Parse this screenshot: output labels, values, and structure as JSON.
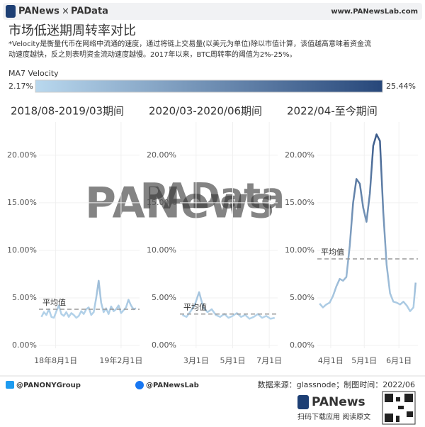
{
  "header": {
    "logo_left": "PANews",
    "logo_sep": "×",
    "logo_right": "PAData",
    "url": "www.PANewsLab.com",
    "title": "市场低迷期周转率对比",
    "subtitle_lines": [
      "*Velocity是衡量代币在网络中流通的速度，通过将链上交易量(以美元为单位)除以市值计算，该值越高意味着资金流",
      "动速度越快，反之则表明资金流动速度越慢。2017年以来，BTC周转率的阈值为2%-25%。"
    ]
  },
  "color_scale": {
    "title": "MA7 Velocity",
    "min": {
      "value": 2.17,
      "label": "2.17%"
    },
    "max": {
      "value": 25.44,
      "label": "25.44%"
    },
    "colors": [
      "#b9d8ee",
      "#27477a"
    ]
  },
  "watermarks": [
    "PANews",
    "PAData"
  ],
  "chart_data": [
    {
      "type": "line",
      "title": "2018/08-2019/03期间",
      "x": [
        "2018-06-22",
        "2018-06-29",
        "2018-07-06",
        "2018-07-13",
        "2018-07-20",
        "2018-07-27",
        "2018-08-03",
        "2018-08-10",
        "2018-08-17",
        "2018-08-24",
        "2018-08-31",
        "2018-09-07",
        "2018-09-14",
        "2018-09-21",
        "2018-09-28",
        "2018-10-05",
        "2018-10-12",
        "2018-10-19",
        "2018-10-26",
        "2018-11-02",
        "2018-11-09",
        "2018-11-16",
        "2018-11-23",
        "2018-11-30",
        "2018-12-07",
        "2018-12-14",
        "2018-12-21",
        "2018-12-28",
        "2019-01-04",
        "2019-01-11",
        "2019-01-18",
        "2019-01-25",
        "2019-02-01",
        "2019-02-08",
        "2019-02-15",
        "2019-02-22",
        "2019-03-01",
        "2019-03-08",
        "2019-03-15"
      ],
      "values": [
        3.0,
        3.5,
        3.2,
        3.8,
        3.0,
        2.9,
        3.6,
        4.2,
        3.3,
        3.1,
        3.5,
        3.0,
        3.4,
        3.2,
        2.9,
        3.1,
        3.6,
        3.3,
        3.8,
        4.0,
        3.2,
        3.5,
        5.0,
        6.8,
        4.5,
        3.5,
        3.9,
        3.3,
        4.1,
        3.6,
        3.8,
        4.2,
        3.4,
        3.7,
        4.0,
        4.8,
        4.2,
        3.8,
        3.9
      ],
      "xlim": [
        "2018-06-15",
        "2019-03-25"
      ],
      "xticks": [
        {
          "value": "2018-08-01",
          "label": "18年8月1日"
        },
        {
          "value": "2019-02-01",
          "label": "19年2月1日"
        }
      ],
      "ylim": [
        -0.3,
        23.5
      ],
      "yticks": [
        {
          "value": 0,
          "label": "0.00%"
        },
        {
          "value": 5,
          "label": "5.00%"
        },
        {
          "value": 10,
          "label": "10.00%"
        },
        {
          "value": 15,
          "label": "15.00%"
        },
        {
          "value": 20,
          "label": "20.00%"
        }
      ],
      "average": {
        "label": "平均值",
        "value": 3.8
      }
    },
    {
      "type": "line",
      "title": "2020/03-2020/06期间",
      "x": [
        "2020-02-07",
        "2020-02-14",
        "2020-02-21",
        "2020-02-28",
        "2020-03-06",
        "2020-03-13",
        "2020-03-20",
        "2020-03-27",
        "2020-04-03",
        "2020-04-10",
        "2020-04-17",
        "2020-04-24",
        "2020-05-01",
        "2020-05-08",
        "2020-05-15",
        "2020-05-22",
        "2020-05-29",
        "2020-06-05",
        "2020-06-12",
        "2020-06-19",
        "2020-06-26",
        "2020-07-03",
        "2020-07-10"
      ],
      "values": [
        3.2,
        3.0,
        3.6,
        4.3,
        5.6,
        4.0,
        3.5,
        3.8,
        3.2,
        3.0,
        3.3,
        2.9,
        3.1,
        3.4,
        3.0,
        3.2,
        2.8,
        3.0,
        3.3,
        2.9,
        3.1,
        2.8,
        2.9
      ],
      "xlim": [
        "2020-02-03",
        "2020-07-15"
      ],
      "xticks": [
        {
          "value": "2020-03-01",
          "label": "3月1日"
        },
        {
          "value": "2020-05-01",
          "label": "5月1日"
        },
        {
          "value": "2020-07-01",
          "label": "7月1日"
        }
      ],
      "ylim": [
        -0.3,
        23.5
      ],
      "yticks": [
        {
          "value": 0,
          "label": "0.00%"
        },
        {
          "value": 5,
          "label": "5.00%"
        },
        {
          "value": 10,
          "label": "10.00%"
        },
        {
          "value": 15,
          "label": "15.00%"
        },
        {
          "value": 20,
          "label": "20.00%"
        }
      ],
      "average": {
        "label": "平均值",
        "value": 3.3
      }
    },
    {
      "type": "line",
      "title": "2022/04-至今期间",
      "x": [
        "2022-03-22",
        "2022-03-25",
        "2022-03-28",
        "2022-03-31",
        "2022-04-03",
        "2022-04-06",
        "2022-04-09",
        "2022-04-12",
        "2022-04-15",
        "2022-04-18",
        "2022-04-21",
        "2022-04-24",
        "2022-04-27",
        "2022-04-30",
        "2022-05-03",
        "2022-05-06",
        "2022-05-09",
        "2022-05-12",
        "2022-05-15",
        "2022-05-18",
        "2022-05-21",
        "2022-05-24",
        "2022-05-27",
        "2022-05-30",
        "2022-06-02",
        "2022-06-05",
        "2022-06-08",
        "2022-06-11",
        "2022-06-14",
        "2022-06-16"
      ],
      "values": [
        4.4,
        4.0,
        4.3,
        4.5,
        5.2,
        6.2,
        7.0,
        6.8,
        7.2,
        10.5,
        15.0,
        17.5,
        17.0,
        14.5,
        13.0,
        16.0,
        21.0,
        22.2,
        21.5,
        14.0,
        8.5,
        5.5,
        4.6,
        4.5,
        4.3,
        4.6,
        4.2,
        3.6,
        4.0,
        6.6
      ],
      "xlim": [
        "2022-03-20",
        "2022-06-18"
      ],
      "xticks": [
        {
          "value": "2022-04-01",
          "label": "4月1日"
        },
        {
          "value": "2022-05-01",
          "label": "5月1日"
        },
        {
          "value": "2022-06-01",
          "label": "6月1日"
        }
      ],
      "ylim": [
        -0.3,
        23.5
      ],
      "yticks": [
        {
          "value": 0,
          "label": "0.00%"
        },
        {
          "value": 5,
          "label": "5.00%"
        },
        {
          "value": 10,
          "label": "10.00%"
        },
        {
          "value": 15,
          "label": "15.00%"
        },
        {
          "value": 20,
          "label": "20.00%"
        }
      ],
      "average": {
        "label": "平均值",
        "value": 9.1
      }
    }
  ],
  "footer": {
    "twitter": "@PANONYGroup",
    "facebook": "@PANewsLab",
    "source": "数据来源：glassnode；制图时间：2022/06",
    "brand": "PANews",
    "qr_caption": "扫码下载应用 阅读原文"
  }
}
